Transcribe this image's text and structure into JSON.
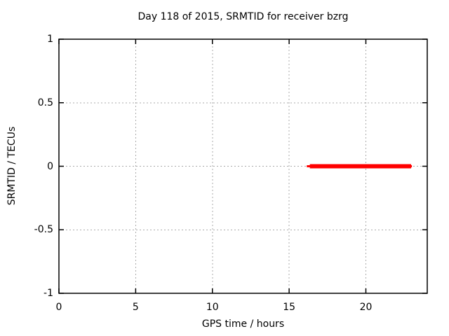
{
  "chart_data": {
    "type": "line",
    "title": "Day 118 of 2015, SRMTID for receiver bzrg",
    "xlabel": "GPS time / hours",
    "ylabel": "SRMTID / TECUs",
    "xlim": [
      0,
      24
    ],
    "ylim": [
      -1,
      1
    ],
    "x_ticks": {
      "values": [
        0,
        5,
        10,
        15,
        20
      ],
      "labels": [
        "0",
        "5",
        "10",
        "15",
        "20"
      ]
    },
    "y_ticks": {
      "values": [
        -1,
        -0.5,
        0,
        0.5,
        1
      ],
      "labels": [
        "-1",
        "-0.5",
        "0",
        "0.5",
        "1"
      ]
    },
    "grid": true,
    "grid_color": "#aaaaaa",
    "border_color": "#000000",
    "background_color": "#ffffff",
    "legend": "none",
    "series": [
      {
        "name": "srmtid",
        "color": "#ff0000",
        "y_value": 0,
        "x_start": 16.2,
        "x_end": 23.0,
        "segments": [
          {
            "x": [
              16.15,
              23.0
            ],
            "y": [
              0,
              0
            ],
            "linewidth": 3
          },
          {
            "x": [
              16.35,
              22.95
            ],
            "y": [
              0,
              0
            ],
            "linewidth": 6
          }
        ]
      }
    ]
  }
}
